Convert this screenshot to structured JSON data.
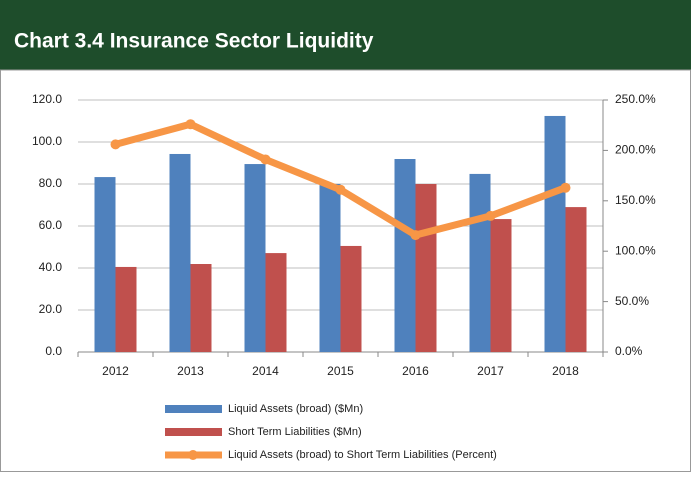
{
  "chart_data": {
    "type": "bar",
    "title": "Chart 3.4 Insurance Sector Liquidity",
    "categories": [
      "2012",
      "2013",
      "2014",
      "2015",
      "2016",
      "2017",
      "2018"
    ],
    "series": [
      {
        "name": "Liquid Assets (broad) ($Mn)",
        "color": "#4f81bd",
        "values": [
          83.3,
          94.3,
          89.5,
          80,
          91.9,
          84.8,
          112.4
        ]
      },
      {
        "name": "Short Term Liabilities ($Mn)",
        "color": "#c0504d",
        "values": [
          40.5,
          41.9,
          47.1,
          50.5,
          80,
          63.3,
          69
        ]
      },
      {
        "name": "Liquid Assets (broad) to Short Term Liabilities (Percent)",
        "color": "#f79646",
        "type": "line",
        "axis": "y2",
        "values": [
          206,
          226,
          191,
          161,
          116,
          135,
          163
        ]
      }
    ],
    "ylim": [
      0,
      120
    ],
    "yticks": [
      {
        "value": 0,
        "label": "0.0"
      },
      {
        "value": 20,
        "label": "20.0"
      },
      {
        "value": 40,
        "label": "40.0"
      },
      {
        "value": 60,
        "label": "60.0"
      },
      {
        "value": 80,
        "label": "80.0"
      },
      {
        "value": 100,
        "label": "100.0"
      },
      {
        "value": 120,
        "label": "120.0"
      }
    ],
    "y2lim": [
      0,
      250
    ],
    "y2ticks": [
      {
        "value": 0,
        "label": "0.0%"
      },
      {
        "value": 50,
        "label": "50.0%"
      },
      {
        "value": 100,
        "label": "100.0%"
      },
      {
        "value": 150,
        "label": "150.0%"
      },
      {
        "value": 200,
        "label": "200.0%"
      },
      {
        "value": 250,
        "label": "250.0%"
      }
    ],
    "grid": true,
    "legend": "bottom"
  }
}
